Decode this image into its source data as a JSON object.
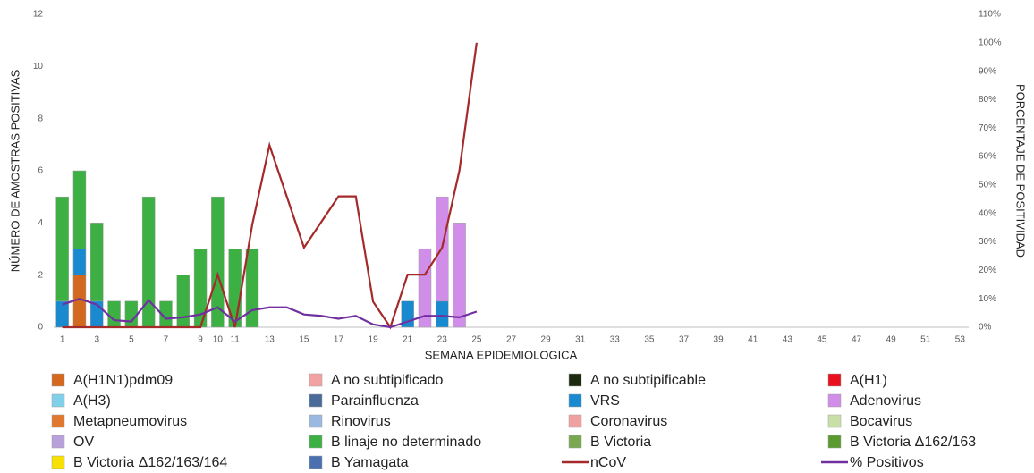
{
  "chart_data": {
    "type": "bar",
    "x_label": "SEMANA EPIDEMIOLOGICA",
    "y_label": "NÚMERO DE AMOSTRAS POSITIVAS",
    "y2_label": "PORCENTAJE DE POSITIVIDAD",
    "categories": [
      1,
      null,
      3,
      null,
      5,
      null,
      7,
      null,
      9,
      10,
      11,
      null,
      13,
      null,
      15,
      null,
      17,
      null,
      19,
      null,
      21,
      null,
      23,
      null,
      25,
      null,
      27,
      null,
      29,
      null,
      31,
      null,
      33,
      null,
      35,
      null,
      37,
      null,
      39,
      null,
      41,
      null,
      43,
      null,
      45,
      null,
      47,
      null,
      49,
      null,
      51,
      null,
      53
    ],
    "ylim": [
      0,
      12
    ],
    "yticks": [
      0,
      2,
      4,
      6,
      8,
      10,
      12
    ],
    "y2lim": [
      0,
      110
    ],
    "y2ticks": [
      {
        "value": 0,
        "label": "0%"
      },
      {
        "value": 10,
        "label": "10%"
      },
      {
        "value": 20,
        "label": "20%"
      },
      {
        "value": 30,
        "label": "30%"
      },
      {
        "value": 40,
        "label": "40%"
      },
      {
        "value": 50,
        "label": "50%"
      },
      {
        "value": 60,
        "label": "60%"
      },
      {
        "value": 70,
        "label": "70%"
      },
      {
        "value": 80,
        "label": "80%"
      },
      {
        "value": 90,
        "label": "90%"
      },
      {
        "value": 100,
        "label": "100%"
      },
      {
        "value": 110,
        "label": "110%"
      }
    ],
    "stacked": true,
    "series": [
      {
        "name": "A(H1N1)pdm09",
        "color": "#d2691e",
        "values": [
          0,
          2,
          0,
          0,
          0,
          0,
          0,
          0,
          0,
          0,
          0,
          0,
          0,
          0,
          0,
          0,
          0,
          0,
          0,
          0,
          0,
          0,
          0,
          0,
          0,
          0,
          0,
          0,
          0,
          0,
          0,
          0,
          0,
          0,
          0,
          0,
          0,
          0,
          0,
          0,
          0,
          0,
          0,
          0,
          0,
          0,
          0,
          0,
          0,
          0,
          0,
          0,
          0
        ]
      },
      {
        "name": "A no subtipificado",
        "color": "#f2a2a2",
        "values": [
          0,
          0,
          0,
          0,
          0,
          0,
          0,
          0,
          0,
          0,
          0,
          0,
          0,
          0,
          0,
          0,
          0,
          0,
          0,
          0,
          0,
          0,
          0,
          0,
          0,
          0,
          0,
          0,
          0,
          0,
          0,
          0,
          0,
          0,
          0,
          0,
          0,
          0,
          0,
          0,
          0,
          0,
          0,
          0,
          0,
          0,
          0,
          0,
          0,
          0,
          0,
          0,
          0
        ]
      },
      {
        "name": "A no subtipificable",
        "color": "#1c2a12",
        "values": [
          0,
          0,
          0,
          0,
          0,
          0,
          0,
          0,
          0,
          0,
          0,
          0,
          0,
          0,
          0,
          0,
          0,
          0,
          0,
          0,
          0,
          0,
          0,
          0,
          0,
          0,
          0,
          0,
          0,
          0,
          0,
          0,
          0,
          0,
          0,
          0,
          0,
          0,
          0,
          0,
          0,
          0,
          0,
          0,
          0,
          0,
          0,
          0,
          0,
          0,
          0,
          0,
          0
        ]
      },
      {
        "name": "A(H1)",
        "color": "#e8101c",
        "values": [
          0,
          0,
          0,
          0,
          0,
          0,
          0,
          0,
          0,
          0,
          0,
          0,
          0,
          0,
          0,
          0,
          0,
          0,
          0,
          0,
          0,
          0,
          0,
          0,
          0,
          0,
          0,
          0,
          0,
          0,
          0,
          0,
          0,
          0,
          0,
          0,
          0,
          0,
          0,
          0,
          0,
          0,
          0,
          0,
          0,
          0,
          0,
          0,
          0,
          0,
          0,
          0,
          0
        ]
      },
      {
        "name": "A(H3)",
        "color": "#7fd0e8",
        "values": [
          0,
          0,
          0,
          0,
          0,
          0,
          0,
          0,
          0,
          0,
          0,
          0,
          0,
          0,
          0,
          0,
          0,
          0,
          0,
          0,
          0,
          0,
          0,
          0,
          0,
          0,
          0,
          0,
          0,
          0,
          0,
          0,
          0,
          0,
          0,
          0,
          0,
          0,
          0,
          0,
          0,
          0,
          0,
          0,
          0,
          0,
          0,
          0,
          0,
          0,
          0,
          0,
          0
        ]
      },
      {
        "name": "Parainfluenza",
        "color": "#4a6a9a",
        "values": [
          0,
          0,
          0,
          0,
          0,
          0,
          0,
          0,
          0,
          0,
          0,
          0,
          0,
          0,
          0,
          0,
          0,
          0,
          0,
          0,
          0,
          0,
          0,
          0,
          0,
          0,
          0,
          0,
          0,
          0,
          0,
          0,
          0,
          0,
          0,
          0,
          0,
          0,
          0,
          0,
          0,
          0,
          0,
          0,
          0,
          0,
          0,
          0,
          0,
          0,
          0,
          0,
          0
        ]
      },
      {
        "name": "VRS",
        "color": "#1a8ad0",
        "values": [
          1,
          1,
          1,
          0,
          0,
          0,
          0,
          0,
          0,
          0,
          0,
          0,
          0,
          0,
          0,
          0,
          0,
          0,
          0,
          0,
          1,
          0,
          1,
          0,
          0,
          0,
          0,
          0,
          0,
          0,
          0,
          0,
          0,
          0,
          0,
          0,
          0,
          0,
          0,
          0,
          0,
          0,
          0,
          0,
          0,
          0,
          0,
          0,
          0,
          0,
          0,
          0,
          0
        ]
      },
      {
        "name": "Adenovirus",
        "color": "#d08ee8",
        "values": [
          0,
          0,
          0,
          0,
          0,
          0,
          0,
          0,
          0,
          0,
          0,
          0,
          0,
          0,
          0,
          0,
          0,
          0,
          0,
          0,
          0,
          3,
          4,
          4,
          0,
          0,
          0,
          0,
          0,
          0,
          0,
          0,
          0,
          0,
          0,
          0,
          0,
          0,
          0,
          0,
          0,
          0,
          0,
          0,
          0,
          0,
          0,
          0,
          0,
          0,
          0,
          0,
          0
        ]
      },
      {
        "name": "Metapneumovirus",
        "color": "#e07830",
        "values": [
          0,
          0,
          0,
          0,
          0,
          0,
          0,
          0,
          0,
          0,
          0,
          0,
          0,
          0,
          0,
          0,
          0,
          0,
          0,
          0,
          0,
          0,
          0,
          0,
          0,
          0,
          0,
          0,
          0,
          0,
          0,
          0,
          0,
          0,
          0,
          0,
          0,
          0,
          0,
          0,
          0,
          0,
          0,
          0,
          0,
          0,
          0,
          0,
          0,
          0,
          0,
          0,
          0
        ]
      },
      {
        "name": "Rinovirus",
        "color": "#9ab8e0",
        "values": [
          0,
          0,
          0,
          0,
          0,
          0,
          0,
          0,
          0,
          0,
          0,
          0,
          0,
          0,
          0,
          0,
          0,
          0,
          0,
          0,
          0,
          0,
          0,
          0,
          0,
          0,
          0,
          0,
          0,
          0,
          0,
          0,
          0,
          0,
          0,
          0,
          0,
          0,
          0,
          0,
          0,
          0,
          0,
          0,
          0,
          0,
          0,
          0,
          0,
          0,
          0,
          0,
          0
        ]
      },
      {
        "name": "Coronavirus",
        "color": "#f0a0a0",
        "values": [
          0,
          0,
          0,
          0,
          0,
          0,
          0,
          0,
          0,
          0,
          0,
          0,
          0,
          0,
          0,
          0,
          0,
          0,
          0,
          0,
          0,
          0,
          0,
          0,
          0,
          0,
          0,
          0,
          0,
          0,
          0,
          0,
          0,
          0,
          0,
          0,
          0,
          0,
          0,
          0,
          0,
          0,
          0,
          0,
          0,
          0,
          0,
          0,
          0,
          0,
          0,
          0,
          0
        ]
      },
      {
        "name": "Bocavirus",
        "color": "#c8e0a8",
        "values": [
          0,
          0,
          0,
          0,
          0,
          0,
          0,
          0,
          0,
          0,
          0,
          0,
          0,
          0,
          0,
          0,
          0,
          0,
          0,
          0,
          0,
          0,
          0,
          0,
          0,
          0,
          0,
          0,
          0,
          0,
          0,
          0,
          0,
          0,
          0,
          0,
          0,
          0,
          0,
          0,
          0,
          0,
          0,
          0,
          0,
          0,
          0,
          0,
          0,
          0,
          0,
          0,
          0
        ]
      },
      {
        "name": "OV",
        "color": "#b8a0d8",
        "values": [
          0,
          0,
          0,
          0,
          0,
          0,
          0,
          0,
          0,
          0,
          0,
          0,
          0,
          0,
          0,
          0,
          0,
          0,
          0,
          0,
          0,
          0,
          0,
          0,
          0,
          0,
          0,
          0,
          0,
          0,
          0,
          0,
          0,
          0,
          0,
          0,
          0,
          0,
          0,
          0,
          0,
          0,
          0,
          0,
          0,
          0,
          0,
          0,
          0,
          0,
          0,
          0,
          0
        ]
      },
      {
        "name": "B linaje no determinado",
        "color": "#3cb043",
        "values": [
          4,
          3,
          3,
          1,
          1,
          5,
          1,
          2,
          3,
          5,
          3,
          3,
          0,
          0,
          0,
          0,
          0,
          0,
          0,
          0,
          0,
          0,
          0,
          0,
          0,
          0,
          0,
          0,
          0,
          0,
          0,
          0,
          0,
          0,
          0,
          0,
          0,
          0,
          0,
          0,
          0,
          0,
          0,
          0,
          0,
          0,
          0,
          0,
          0,
          0,
          0,
          0,
          0
        ]
      },
      {
        "name": "B Victoria",
        "color": "#7aa850",
        "values": [
          0,
          0,
          0,
          0,
          0,
          0,
          0,
          0,
          0,
          0,
          0,
          0,
          0,
          0,
          0,
          0,
          0,
          0,
          0,
          0,
          0,
          0,
          0,
          0,
          0,
          0,
          0,
          0,
          0,
          0,
          0,
          0,
          0,
          0,
          0,
          0,
          0,
          0,
          0,
          0,
          0,
          0,
          0,
          0,
          0,
          0,
          0,
          0,
          0,
          0,
          0,
          0,
          0
        ]
      },
      {
        "name": "B Victoria Δ162/163",
        "color": "#5a9a30",
        "values": [
          0,
          0,
          0,
          0,
          0,
          0,
          0,
          0,
          0,
          0,
          0,
          0,
          0,
          0,
          0,
          0,
          0,
          0,
          0,
          0,
          0,
          0,
          0,
          0,
          0,
          0,
          0,
          0,
          0,
          0,
          0,
          0,
          0,
          0,
          0,
          0,
          0,
          0,
          0,
          0,
          0,
          0,
          0,
          0,
          0,
          0,
          0,
          0,
          0,
          0,
          0,
          0,
          0
        ]
      },
      {
        "name": "B Victoria Δ162/163/164",
        "color": "#f8e000",
        "values": [
          0,
          0,
          0,
          0,
          0,
          0,
          0,
          0,
          0,
          0,
          0,
          0,
          0,
          0,
          0,
          0,
          0,
          0,
          0,
          0,
          0,
          0,
          0,
          0,
          0,
          0,
          0,
          0,
          0,
          0,
          0,
          0,
          0,
          0,
          0,
          0,
          0,
          0,
          0,
          0,
          0,
          0,
          0,
          0,
          0,
          0,
          0,
          0,
          0,
          0,
          0,
          0,
          0
        ]
      },
      {
        "name": "B Yamagata",
        "color": "#4a70b0",
        "values": [
          0,
          0,
          0,
          0,
          0,
          0,
          0,
          0,
          0,
          0,
          0,
          0,
          0,
          0,
          0,
          0,
          0,
          0,
          0,
          0,
          0,
          0,
          0,
          0,
          0,
          0,
          0,
          0,
          0,
          0,
          0,
          0,
          0,
          0,
          0,
          0,
          0,
          0,
          0,
          0,
          0,
          0,
          0,
          0,
          0,
          0,
          0,
          0,
          0,
          0,
          0,
          0,
          0
        ]
      },
      {
        "name": "nCoV",
        "color": "#a52a2a",
        "type": "line",
        "axis": "y2",
        "values": [
          0,
          0,
          0,
          0,
          0,
          0,
          0,
          0,
          0,
          18.5,
          0,
          36,
          64,
          46,
          28,
          37,
          46,
          46,
          9,
          0,
          18.5,
          18.5,
          28,
          55,
          100,
          null,
          null,
          null,
          null,
          null,
          null,
          null,
          null,
          null,
          null,
          null,
          null,
          null,
          null,
          null,
          null,
          null,
          null,
          null,
          null,
          null,
          null,
          null,
          null,
          null,
          null,
          null,
          null
        ]
      },
      {
        "name": "% Positivos",
        "color": "#7030a0",
        "type": "line",
        "axis": "y2",
        "values": [
          8,
          10,
          8,
          2.5,
          2,
          9.5,
          3,
          3.5,
          4.5,
          7,
          2,
          6,
          7,
          7,
          4.5,
          4,
          3,
          4,
          1,
          0,
          2,
          4,
          4,
          3.5,
          5.5,
          null,
          null,
          null,
          null,
          null,
          null,
          null,
          null,
          null,
          null,
          null,
          null,
          null,
          null,
          null,
          null,
          null,
          null,
          null,
          null,
          null,
          null,
          null,
          null,
          null,
          null,
          null,
          null
        ]
      }
    ]
  }
}
